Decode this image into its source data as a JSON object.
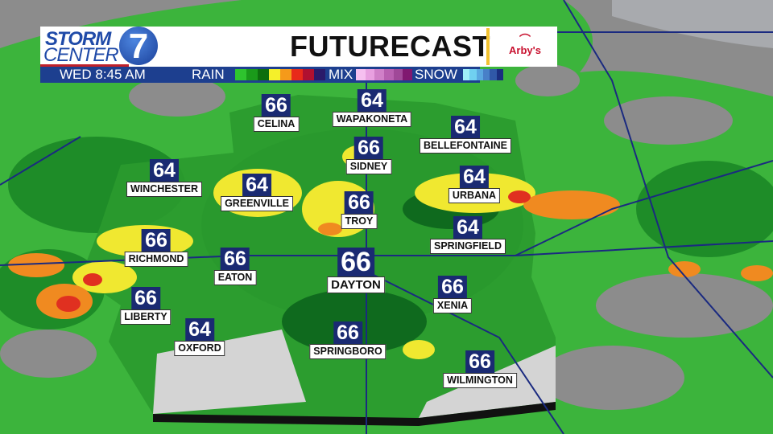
{
  "header": {
    "brand": "STORM CENTER 7",
    "brand_line1": "STORM",
    "brand_line2": "CENTER",
    "brand_number": "7",
    "title": "FUTURECAST",
    "sponsor": "Arby's"
  },
  "legend": {
    "time": "WED  8:45 AM",
    "rain": "RAIN",
    "mix": "MIX",
    "snow": "SNOW",
    "rain_colors": [
      "#2ec42e",
      "#1a9a1a",
      "#0d6e0d",
      "#f5f02a",
      "#f59a1a",
      "#e82a1a",
      "#b01030",
      "#2a1a6a"
    ],
    "mix_colors": [
      "#f6c0f0",
      "#e8a0e0",
      "#d080c8",
      "#b860b0",
      "#a04898",
      "#801870"
    ],
    "snow_colors": [
      "#a0f0f8",
      "#70d0f0",
      "#5aa8e0",
      "#4880c8",
      "#3058a8",
      "#1a2e80"
    ]
  },
  "cities": [
    {
      "name": "CELINA",
      "temp": "66"
    },
    {
      "name": "WAPAKONETA",
      "temp": "64"
    },
    {
      "name": "BELLEFONTAINE",
      "temp": "64"
    },
    {
      "name": "SIDNEY",
      "temp": "66"
    },
    {
      "name": "WINCHESTER",
      "temp": "64"
    },
    {
      "name": "GREENVILLE",
      "temp": "64"
    },
    {
      "name": "URBANA",
      "temp": "64"
    },
    {
      "name": "TROY",
      "temp": "66"
    },
    {
      "name": "RICHMOND",
      "temp": "66"
    },
    {
      "name": "SPRINGFIELD",
      "temp": "64"
    },
    {
      "name": "EATON",
      "temp": "66"
    },
    {
      "name": "DAYTON",
      "temp": "66"
    },
    {
      "name": "XENIA",
      "temp": "66"
    },
    {
      "name": "LIBERTY",
      "temp": "66"
    },
    {
      "name": "OXFORD",
      "temp": "64"
    },
    {
      "name": "SPRINGBORO",
      "temp": "66"
    },
    {
      "name": "WILMINGTON",
      "temp": "66"
    }
  ],
  "colors": {
    "land": "#8c8c8c",
    "light_rain": "#3cb43c",
    "rain": "#1e8c28",
    "heavy_rain": "#0f6a1e",
    "moderate": "#f0e830",
    "heavy": "#f08a20",
    "intense": "#e03020",
    "roads": "#1a2a80",
    "header_bar": "#1d3f8f"
  }
}
